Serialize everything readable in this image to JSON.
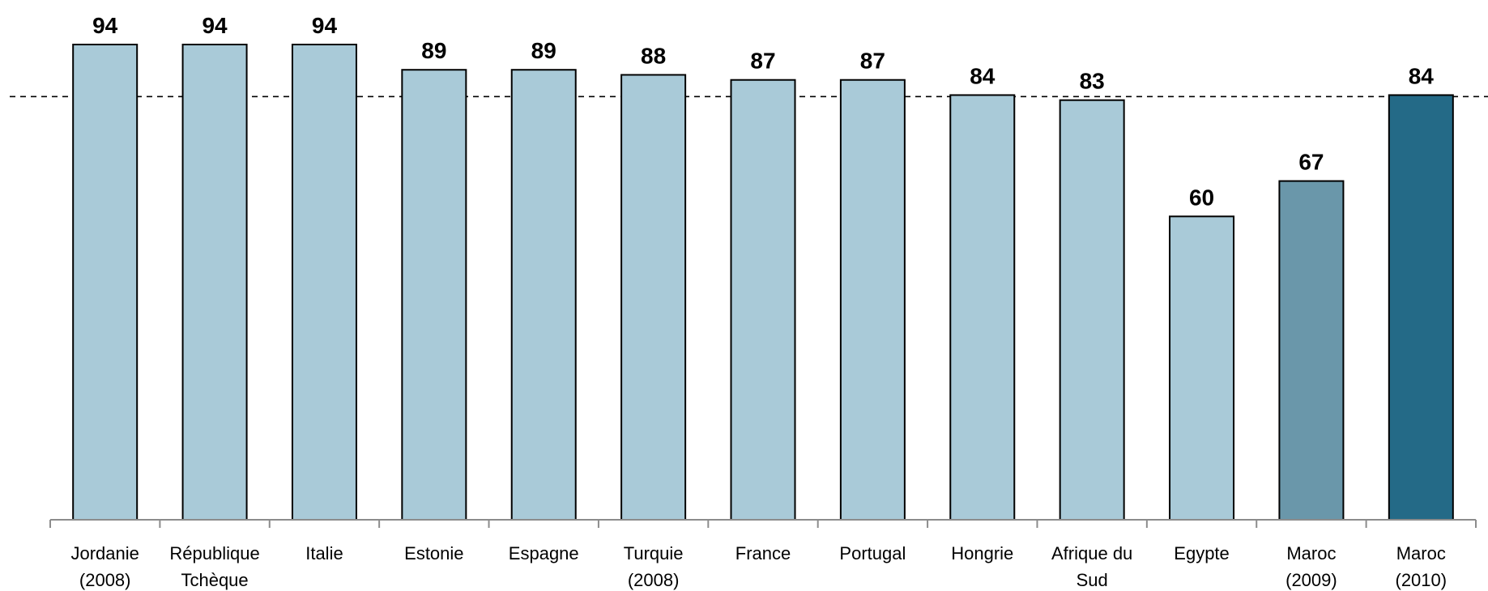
{
  "chart_data": {
    "type": "bar",
    "categories": [
      "Jordanie (2008)",
      "République Tchèque",
      "Italie",
      "Estonie",
      "Espagne",
      "Turquie (2008)",
      "France",
      "Portugal",
      "Hongrie",
      "Afrique du Sud",
      "Egypte",
      "Maroc (2009)",
      "Maroc (2010)"
    ],
    "category_lines": [
      [
        "Jordanie",
        "(2008)"
      ],
      [
        "République",
        "Tchèque"
      ],
      [
        "Italie"
      ],
      [
        "Estonie"
      ],
      [
        "Espagne"
      ],
      [
        "Turquie",
        "(2008)"
      ],
      [
        "France"
      ],
      [
        "Portugal"
      ],
      [
        "Hongrie"
      ],
      [
        "Afrique du",
        "Sud"
      ],
      [
        "Egypte"
      ],
      [
        "Maroc",
        "(2009)"
      ],
      [
        "Maroc",
        "(2010)"
      ]
    ],
    "values": [
      94,
      94,
      94,
      89,
      89,
      88,
      87,
      87,
      84,
      83,
      60,
      67,
      84
    ],
    "bar_colors": [
      "#a9cad8",
      "#a9cad8",
      "#a9cad8",
      "#a9cad8",
      "#a9cad8",
      "#a9cad8",
      "#a9cad8",
      "#a9cad8",
      "#a9cad8",
      "#a9cad8",
      "#a9cad8",
      "#6a97aa",
      "#246a87"
    ],
    "reference_line": {
      "value": 83.7,
      "style": "dashed"
    },
    "ylim": [
      0,
      94
    ],
    "grid": false,
    "legend": "none",
    "title": "",
    "xlabel": "",
    "ylabel": ""
  }
}
